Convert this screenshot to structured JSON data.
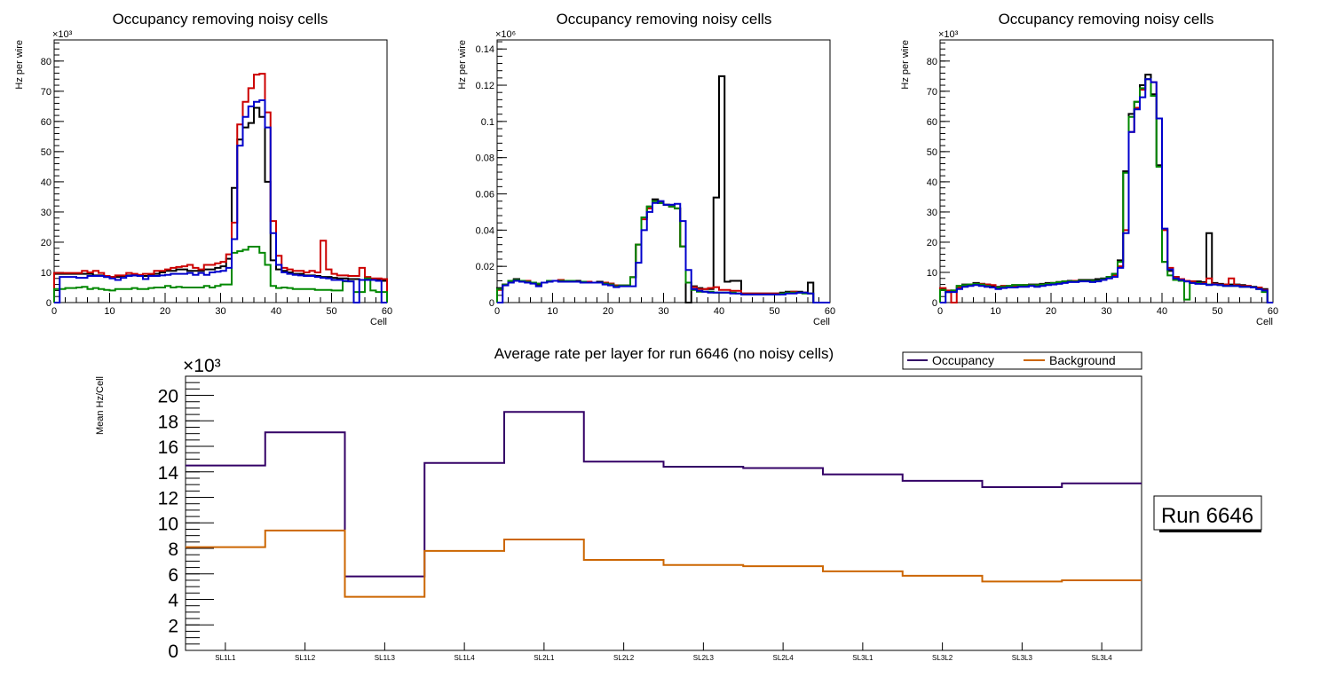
{
  "chart_data": [
    {
      "type": "line",
      "style": "step-histogram",
      "title": "Occupancy removing noisy cells",
      "xlabel": "Cell",
      "ylabel": "Hz per wire",
      "y_multiplier_label": "×10³",
      "xlim": [
        0,
        60
      ],
      "ylim": [
        0,
        87
      ],
      "xticks": [
        "0",
        "10",
        "20",
        "30",
        "40",
        "50",
        "60"
      ],
      "yticks": [
        "0",
        "10",
        "20",
        "30",
        "40",
        "50",
        "60",
        "70",
        "80"
      ],
      "series": [
        {
          "name": "black",
          "color": "#000000",
          "values": [
            9.5,
            9.5,
            9.5,
            9.5,
            9.5,
            9.5,
            9.5,
            9.0,
            9.0,
            8.5,
            8.5,
            8.5,
            8.8,
            9.0,
            9.0,
            9.0,
            8.8,
            9.2,
            9.5,
            10.0,
            10.5,
            10.5,
            11.0,
            11.0,
            10.5,
            10.5,
            10.5,
            11.0,
            11.0,
            11.5,
            12.0,
            14.5,
            38.0,
            54.0,
            58.0,
            59.5,
            64.5,
            61.5,
            40.0,
            14.0,
            11.0,
            10.5,
            10.0,
            9.5,
            9.5,
            9.0,
            9.0,
            8.8,
            8.5,
            8.5,
            8.2,
            8.0,
            8.0,
            7.8,
            7.8,
            7.5,
            7.5,
            7.5,
            7.5,
            7.2
          ]
        },
        {
          "name": "red",
          "color": "#cc0000",
          "values": [
            9.8,
            9.8,
            9.8,
            9.8,
            9.8,
            10.5,
            10.0,
            10.5,
            9.8,
            8.8,
            8.5,
            9.0,
            9.0,
            9.8,
            9.5,
            9.2,
            9.5,
            9.5,
            10.5,
            10.5,
            11.0,
            11.5,
            11.8,
            12.0,
            12.5,
            11.5,
            11.0,
            12.5,
            12.5,
            13.0,
            13.5,
            16.0,
            26.5,
            59.0,
            66.5,
            71.0,
            75.5,
            75.8,
            63.0,
            27.0,
            15.5,
            11.5,
            11.0,
            10.5,
            10.5,
            10.0,
            10.5,
            10.0,
            20.5,
            11.0,
            9.5,
            9.0,
            9.0,
            8.8,
            8.8,
            11.5,
            8.5,
            8.0,
            8.0,
            7.8
          ]
        },
        {
          "name": "green",
          "color": "#008800",
          "values": [
            4.5,
            4.5,
            4.8,
            4.8,
            5.0,
            5.2,
            4.5,
            4.8,
            4.5,
            4.2,
            4.0,
            4.5,
            4.5,
            4.5,
            4.8,
            4.5,
            4.5,
            4.8,
            5.0,
            5.0,
            5.5,
            5.0,
            5.2,
            5.0,
            5.0,
            5.0,
            5.0,
            5.5,
            5.0,
            5.5,
            6.0,
            6.0,
            16.5,
            17.0,
            17.5,
            18.5,
            18.5,
            16.5,
            12.5,
            5.5,
            4.8,
            5.0,
            4.8,
            4.5,
            4.5,
            4.5,
            4.5,
            4.2,
            4.2,
            4.2,
            4.0,
            4.0,
            7.0,
            7.0,
            3.5,
            3.5,
            8.0,
            4.0,
            3.5,
            3.5
          ]
        },
        {
          "name": "blue",
          "color": "#0000cc",
          "values": [
            0.0,
            8.5,
            8.5,
            8.5,
            8.2,
            8.2,
            8.8,
            8.8,
            8.8,
            8.5,
            8.0,
            7.5,
            8.2,
            8.8,
            9.0,
            8.8,
            7.8,
            8.8,
            8.8,
            9.0,
            9.2,
            9.5,
            9.5,
            9.5,
            9.8,
            9.2,
            9.8,
            9.2,
            10.0,
            10.2,
            10.5,
            11.5,
            21.0,
            52.0,
            61.5,
            65.0,
            66.5,
            67.0,
            58.0,
            23.0,
            12.5,
            10.0,
            9.5,
            9.2,
            9.0,
            8.8,
            8.8,
            8.5,
            8.2,
            8.0,
            7.5,
            7.5,
            7.2,
            7.0,
            0.0,
            7.5,
            7.5,
            7.5,
            7.2,
            0.0
          ]
        }
      ]
    },
    {
      "type": "line",
      "style": "step-histogram",
      "title": "Occupancy removing noisy cells",
      "xlabel": "Cell",
      "ylabel": "Hz per wire",
      "y_multiplier_label": "×10⁶",
      "xlim": [
        0,
        60
      ],
      "ylim": [
        0,
        0.145
      ],
      "xticks": [
        "0",
        "10",
        "20",
        "30",
        "40",
        "50",
        "60"
      ],
      "yticks": [
        "0",
        "0.02",
        "0.04",
        "0.06",
        "0.08",
        "0.1",
        "0.12",
        "0.14"
      ],
      "series": [
        {
          "name": "black",
          "color": "#000000",
          "values": [
            0.008,
            0.01,
            0.012,
            0.013,
            0.012,
            0.012,
            0.011,
            0.01,
            0.011,
            0.012,
            0.012,
            0.012,
            0.012,
            0.012,
            0.012,
            0.0115,
            0.0115,
            0.011,
            0.0115,
            0.011,
            0.0105,
            0.0095,
            0.0095,
            0.0095,
            0.014,
            0.032,
            0.047,
            0.053,
            0.057,
            0.055,
            0.054,
            0.053,
            0.052,
            0.031,
            0.0,
            0.009,
            0.008,
            0.0075,
            0.0075,
            0.058,
            0.125,
            0.0115,
            0.012,
            0.012,
            0.005,
            0.005,
            0.005,
            0.005,
            0.005,
            0.005,
            0.005,
            0.0055,
            0.006,
            0.006,
            0.006,
            0.0055,
            0.011,
            0.0,
            0.0,
            0.0
          ]
        },
        {
          "name": "red",
          "color": "#cc0000",
          "values": [
            0.007,
            0.01,
            0.0115,
            0.0125,
            0.012,
            0.012,
            0.011,
            0.0105,
            0.011,
            0.0115,
            0.012,
            0.0125,
            0.012,
            0.012,
            0.0115,
            0.0115,
            0.0115,
            0.011,
            0.011,
            0.011,
            0.0105,
            0.0095,
            0.0095,
            0.0095,
            0.014,
            0.032,
            0.046,
            0.052,
            0.056,
            0.0555,
            0.054,
            0.053,
            0.052,
            0.031,
            0.011,
            0.0085,
            0.0075,
            0.0075,
            0.008,
            0.0085,
            0.007,
            0.007,
            0.0065,
            0.0065,
            0.005,
            0.005,
            0.005,
            0.005,
            0.005,
            0.005,
            0.005,
            0.005,
            0.0055,
            0.006,
            0.0055,
            0.0055,
            0.005,
            0.0,
            0.0,
            0.0
          ]
        },
        {
          "name": "green",
          "color": "#008800",
          "values": [
            0.0075,
            0.01,
            0.012,
            0.0125,
            0.012,
            0.0115,
            0.011,
            0.0105,
            0.011,
            0.012,
            0.012,
            0.012,
            0.012,
            0.012,
            0.0115,
            0.0115,
            0.011,
            0.011,
            0.011,
            0.0105,
            0.01,
            0.009,
            0.0095,
            0.0095,
            0.014,
            0.032,
            0.047,
            0.053,
            0.056,
            0.055,
            0.054,
            0.053,
            0.052,
            0.031,
            0.011,
            0.007,
            0.006,
            0.006,
            0.006,
            0.0055,
            0.0055,
            0.0055,
            0.0055,
            0.005,
            0.0045,
            0.0045,
            0.0045,
            0.0045,
            0.0045,
            0.0045,
            0.0045,
            0.005,
            0.0055,
            0.0055,
            0.0055,
            0.005,
            0.005,
            0.0,
            0.0,
            0.0
          ]
        },
        {
          "name": "blue",
          "color": "#0000cc",
          "values": [
            0.0,
            0.0095,
            0.011,
            0.012,
            0.0115,
            0.011,
            0.0105,
            0.009,
            0.011,
            0.0115,
            0.012,
            0.0115,
            0.0115,
            0.0115,
            0.0115,
            0.011,
            0.011,
            0.011,
            0.011,
            0.01,
            0.0095,
            0.0085,
            0.009,
            0.009,
            0.009,
            0.022,
            0.04,
            0.05,
            0.055,
            0.056,
            0.054,
            0.054,
            0.0545,
            0.045,
            0.018,
            0.0075,
            0.0065,
            0.006,
            0.0055,
            0.0055,
            0.0055,
            0.0055,
            0.005,
            0.005,
            0.0045,
            0.0045,
            0.0045,
            0.0045,
            0.0045,
            0.0045,
            0.0045,
            0.0045,
            0.005,
            0.005,
            0.0055,
            0.0055,
            0.005,
            0.0,
            0.0,
            0.0
          ]
        }
      ]
    },
    {
      "type": "line",
      "style": "step-histogram",
      "title": "Occupancy removing noisy cells",
      "xlabel": "Cell",
      "ylabel": "Hz per wire",
      "y_multiplier_label": "×10³",
      "xlim": [
        0,
        60
      ],
      "ylim": [
        0,
        87
      ],
      "xticks": [
        "0",
        "10",
        "20",
        "30",
        "40",
        "50",
        "60"
      ],
      "yticks": [
        "0",
        "10",
        "20",
        "30",
        "40",
        "50",
        "60",
        "70",
        "80"
      ],
      "series": [
        {
          "name": "black",
          "color": "#000000",
          "values": [
            4.5,
            3.5,
            4.0,
            5.5,
            6.0,
            6.0,
            6.5,
            6.2,
            6.0,
            5.5,
            5.2,
            5.5,
            5.5,
            5.8,
            5.8,
            5.8,
            6.0,
            6.0,
            6.2,
            6.5,
            6.5,
            6.8,
            7.0,
            7.2,
            7.2,
            7.5,
            7.5,
            7.5,
            7.8,
            8.0,
            8.5,
            9.5,
            14.0,
            43.5,
            62.5,
            66.5,
            72.0,
            75.5,
            69.0,
            45.5,
            13.5,
            10.5,
            8.5,
            7.5,
            7.0,
            7.0,
            7.0,
            6.8,
            23.0,
            6.5,
            6.2,
            6.0,
            6.0,
            6.0,
            5.8,
            5.5,
            5.2,
            5.0,
            4.5,
            0.0
          ]
        },
        {
          "name": "red",
          "color": "#cc0000",
          "values": [
            4.8,
            4.0,
            0.0,
            5.0,
            5.5,
            5.8,
            6.2,
            6.2,
            6.0,
            5.8,
            5.0,
            5.5,
            5.5,
            5.5,
            5.5,
            5.8,
            5.8,
            5.8,
            6.0,
            6.2,
            6.5,
            6.8,
            7.0,
            7.0,
            7.2,
            7.2,
            7.2,
            7.2,
            7.2,
            7.8,
            8.2,
            9.0,
            12.0,
            24.0,
            56.5,
            64.5,
            70.5,
            74.0,
            73.0,
            61.0,
            24.0,
            11.5,
            8.5,
            7.8,
            7.2,
            7.0,
            6.5,
            6.5,
            8.0,
            6.2,
            6.0,
            6.0,
            8.0,
            5.8,
            5.5,
            5.5,
            5.0,
            5.0,
            4.2,
            0.0
          ]
        },
        {
          "name": "green",
          "color": "#008800",
          "values": [
            4.2,
            3.5,
            4.0,
            5.5,
            5.8,
            6.0,
            6.2,
            6.0,
            5.5,
            5.0,
            5.0,
            5.2,
            5.5,
            5.8,
            5.8,
            5.8,
            5.8,
            5.8,
            6.0,
            6.2,
            6.5,
            6.8,
            7.0,
            7.0,
            7.0,
            7.2,
            7.2,
            7.2,
            7.2,
            7.8,
            8.5,
            9.5,
            13.5,
            43.0,
            61.5,
            66.5,
            71.0,
            74.0,
            68.5,
            45.0,
            13.5,
            9.0,
            7.5,
            7.2,
            1.0,
            6.5,
            6.5,
            6.2,
            6.0,
            6.0,
            5.8,
            5.5,
            5.5,
            5.5,
            5.2,
            5.2,
            5.0,
            4.5,
            3.5,
            0.0
          ]
        },
        {
          "name": "blue",
          "color": "#0000cc",
          "values": [
            0.0,
            3.5,
            3.5,
            4.5,
            5.2,
            5.5,
            5.8,
            5.5,
            5.2,
            5.0,
            4.5,
            4.8,
            5.0,
            5.0,
            5.2,
            5.2,
            5.5,
            5.2,
            5.5,
            5.8,
            6.0,
            6.2,
            6.5,
            6.8,
            6.8,
            7.0,
            7.0,
            6.8,
            7.0,
            7.5,
            8.0,
            8.5,
            11.5,
            23.0,
            56.5,
            64.0,
            68.0,
            74.0,
            73.0,
            61.0,
            24.5,
            11.0,
            8.0,
            7.5,
            7.0,
            6.5,
            6.2,
            6.2,
            5.8,
            6.0,
            5.8,
            5.5,
            5.5,
            5.5,
            5.2,
            5.2,
            5.0,
            4.5,
            4.0,
            0.0
          ]
        }
      ]
    },
    {
      "type": "line",
      "style": "step-histogram",
      "title": "Average rate per layer for run 6646 (no noisy cells)",
      "xlabel": "",
      "ylabel": "Mean Hz/Cell",
      "y_multiplier_label": "×10³",
      "categories": [
        "SL1L1",
        "SL1L2",
        "SL1L3",
        "SL1L4",
        "SL2L1",
        "SL2L2",
        "SL2L3",
        "SL2L4",
        "SL3L1",
        "SL3L2",
        "SL3L3",
        "SL3L4"
      ],
      "ylim": [
        0,
        21.5
      ],
      "yticks": [
        "0",
        "2",
        "4",
        "6",
        "8",
        "10",
        "12",
        "14",
        "16",
        "18",
        "20"
      ],
      "legend_position": "top-right",
      "series": [
        {
          "name": "Occupancy",
          "color": "#330066",
          "values": [
            14.5,
            17.1,
            5.8,
            14.7,
            18.7,
            14.8,
            14.4,
            14.3,
            13.8,
            13.3,
            12.8,
            13.1
          ]
        },
        {
          "name": "Background",
          "color": "#cc6600",
          "values": [
            8.1,
            9.4,
            4.2,
            7.8,
            8.7,
            7.1,
            6.7,
            6.6,
            6.2,
            5.85,
            5.4,
            5.5
          ]
        }
      ],
      "annotation": "Run 6646"
    }
  ]
}
